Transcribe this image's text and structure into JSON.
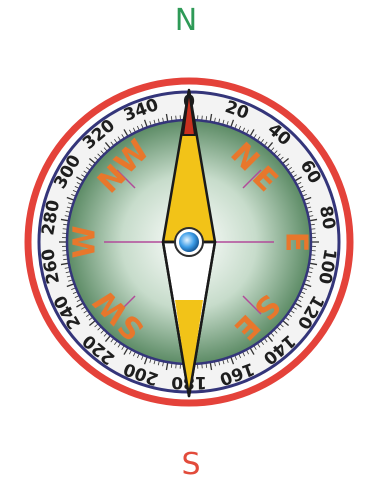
{
  "outer_labels": {
    "north": "N",
    "south": "S"
  },
  "degree_labels": [
    "0",
    "20",
    "40",
    "60",
    "80",
    "100",
    "120",
    "140",
    "160",
    "180",
    "200",
    "220",
    "240",
    "260",
    "280",
    "300",
    "320",
    "340"
  ],
  "directions": {
    "N": "N",
    "E": "E",
    "S": "S",
    "W": "W"
  },
  "intercardinal_pairs": {
    "NE": [
      "N",
      "E"
    ],
    "SE": [
      "S",
      "E"
    ],
    "SW": [
      "S",
      "W"
    ],
    "NW": [
      "N",
      "W"
    ]
  },
  "colors": {
    "north_label": "#2e9a57",
    "south_label": "#e24b3b",
    "outer_ring": "#e4423a",
    "inner_ring": "#34357a",
    "dial_ring_fill": "#f3f3f3",
    "face_center": "#f2f6f2",
    "face_edge": "#5c8b65",
    "direction_text": "#e8772c",
    "needle_tip": "#c9311f",
    "needle_yellow": "#f2c318",
    "needle_white": "#ffffff",
    "crosshair": "#b24a9a",
    "pivot": "#3e9ee8"
  }
}
